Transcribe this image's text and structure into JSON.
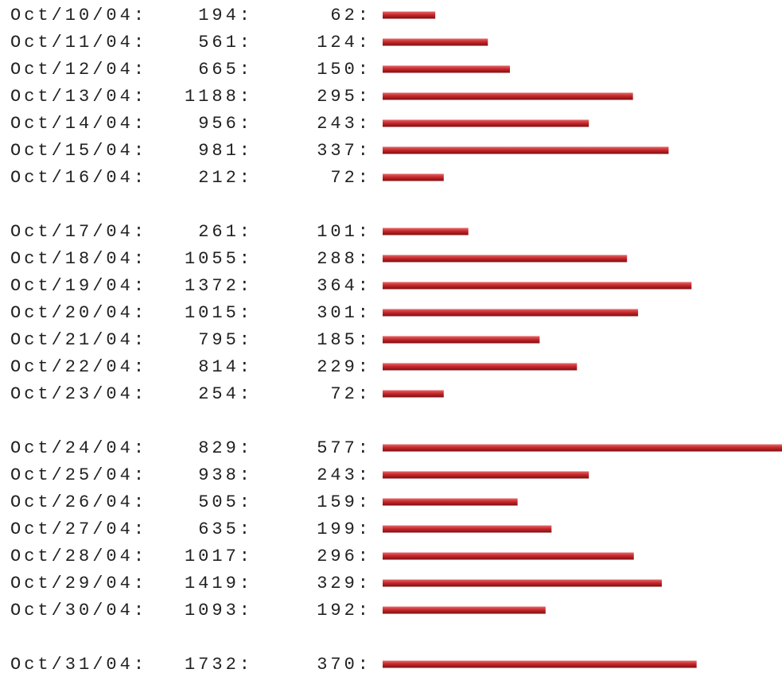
{
  "weeks": [
    [
      {
        "date": "Oct/10/04:",
        "requests": "194:",
        "pages": 62,
        "pages_label": "62:"
      },
      {
        "date": "Oct/11/04:",
        "requests": "561:",
        "pages": 124,
        "pages_label": "124:"
      },
      {
        "date": "Oct/12/04:",
        "requests": "665:",
        "pages": 150,
        "pages_label": "150:"
      },
      {
        "date": "Oct/13/04:",
        "requests": "1188:",
        "pages": 295,
        "pages_label": "295:"
      },
      {
        "date": "Oct/14/04:",
        "requests": "956:",
        "pages": 243,
        "pages_label": "243:"
      },
      {
        "date": "Oct/15/04:",
        "requests": "981:",
        "pages": 337,
        "pages_label": "337:"
      },
      {
        "date": "Oct/16/04:",
        "requests": "212:",
        "pages": 72,
        "pages_label": "72:"
      }
    ],
    [
      {
        "date": "Oct/17/04:",
        "requests": "261:",
        "pages": 101,
        "pages_label": "101:"
      },
      {
        "date": "Oct/18/04:",
        "requests": "1055:",
        "pages": 288,
        "pages_label": "288:"
      },
      {
        "date": "Oct/19/04:",
        "requests": "1372:",
        "pages": 364,
        "pages_label": "364:"
      },
      {
        "date": "Oct/20/04:",
        "requests": "1015:",
        "pages": 301,
        "pages_label": "301:"
      },
      {
        "date": "Oct/21/04:",
        "requests": "795:",
        "pages": 185,
        "pages_label": "185:"
      },
      {
        "date": "Oct/22/04:",
        "requests": "814:",
        "pages": 229,
        "pages_label": "229:"
      },
      {
        "date": "Oct/23/04:",
        "requests": "254:",
        "pages": 72,
        "pages_label": "72:"
      }
    ],
    [
      {
        "date": "Oct/24/04:",
        "requests": "829:",
        "pages": 577,
        "pages_label": "577:"
      },
      {
        "date": "Oct/25/04:",
        "requests": "938:",
        "pages": 243,
        "pages_label": "243:"
      },
      {
        "date": "Oct/26/04:",
        "requests": "505:",
        "pages": 159,
        "pages_label": "159:"
      },
      {
        "date": "Oct/27/04:",
        "requests": "635:",
        "pages": 199,
        "pages_label": "199:"
      },
      {
        "date": "Oct/28/04:",
        "requests": "1017:",
        "pages": 296,
        "pages_label": "296:"
      },
      {
        "date": "Oct/29/04:",
        "requests": "1419:",
        "pages": 329,
        "pages_label": "329:"
      },
      {
        "date": "Oct/30/04:",
        "requests": "1093:",
        "pages": 192,
        "pages_label": "192:"
      }
    ],
    [
      {
        "date": "Oct/31/04:",
        "requests": "1732:",
        "pages": 370,
        "pages_label": "370:"
      }
    ]
  ]
}
